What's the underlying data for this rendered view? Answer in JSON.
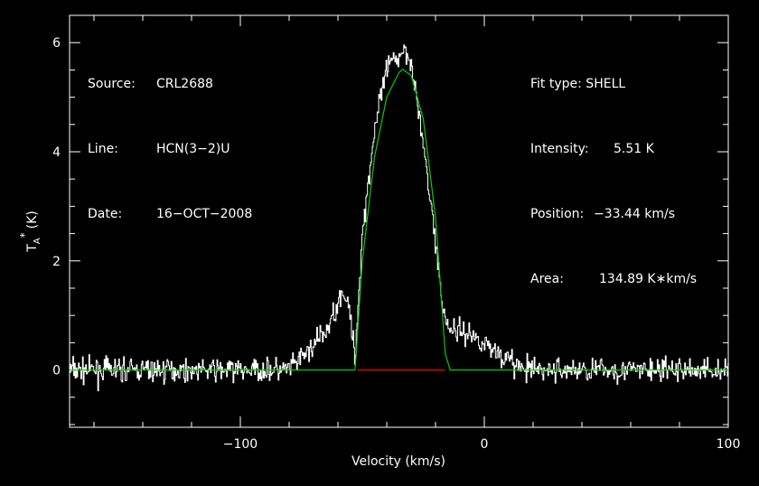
{
  "header_left": {
    "source_key": "Source:",
    "source_val": "CRL2688",
    "line_key": "Line:",
    "line_val": "HCN(3−2)U",
    "date_key": "Date:",
    "date_val": "16−OCT−2008"
  },
  "header_right": {
    "fit_type": "Fit type: SHELL",
    "intensity_key": "Intensity:",
    "intensity_val": "5.51 K",
    "position_key": "Position:",
    "position_val": "−33.44 km/s",
    "area_key": "Area:",
    "area_val": "134.89 K∗km/s"
  },
  "chart_data": {
    "type": "line",
    "xlabel": "Velocity (km/s)",
    "ylabel_main": "T",
    "ylabel_sub": "A",
    "ylabel_sup": "*",
    "ylabel_unit": "(K)",
    "xlim": [
      -170,
      100
    ],
    "ylim": [
      -1.05,
      6.5
    ],
    "x_ticks": [
      -100,
      0,
      100
    ],
    "x_tick_labels": [
      "−100",
      "0",
      "100"
    ],
    "y_ticks": [
      0,
      2,
      4,
      6
    ],
    "y_tick_labels": [
      "0",
      "2",
      "4",
      "6"
    ],
    "colors": {
      "spectrum": "#ffffff",
      "fit": "#00d000",
      "baseline_window": "#e00000"
    },
    "spectrum_profile": {
      "x": [
        -170,
        -80,
        -72,
        -64,
        -58,
        -55,
        -53,
        -50,
        -45,
        -40,
        -36,
        -33,
        -30,
        -25,
        -20,
        -17,
        -14,
        -8,
        0,
        8,
        16,
        100
      ],
      "y": [
        0,
        0,
        0.35,
        0.75,
        1.5,
        1.0,
        0.2,
        2.5,
        4.4,
        5.5,
        5.7,
        5.9,
        5.7,
        4.1,
        2.4,
        1.1,
        0.75,
        0.7,
        0.5,
        0.25,
        0,
        0
      ]
    },
    "noise_rms": 0.15,
    "fit": {
      "x": [
        -170,
        -53,
        -50,
        -45,
        -40,
        -35,
        -33.44,
        -30,
        -25,
        -20,
        -16,
        -14,
        100
      ],
      "y": [
        0,
        0,
        2.0,
        3.9,
        5.0,
        5.45,
        5.51,
        5.4,
        4.6,
        2.8,
        0.3,
        0,
        0
      ]
    },
    "red_segment": [
      -52,
      -16
    ]
  }
}
